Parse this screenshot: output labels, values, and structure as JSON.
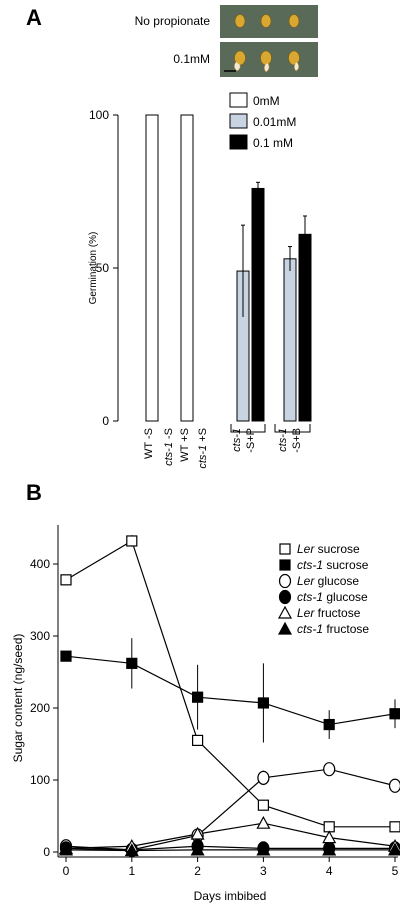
{
  "panel_a": {
    "letter": "A",
    "photo_labels": [
      "No propionate",
      "0.1mM"
    ],
    "ylabel": "Germination (%)",
    "legend": [
      "0mM",
      "0.01mM",
      "0.1 mM"
    ],
    "xtick_lines": [
      [
        "WT -S"
      ],
      [
        "cts-1 -S"
      ],
      [
        "WT +S"
      ],
      [
        "cts-1 +S"
      ],
      [
        "cts-1",
        "-S+P"
      ],
      [
        "cts-1",
        "-S+B"
      ]
    ]
  },
  "panel_b": {
    "letter": "B",
    "xlabel": "Days imbibed",
    "ylabel": "Sugar content (ng/seed)",
    "legend": [
      {
        "genotype": "Ler",
        "sugar": "sucrose"
      },
      {
        "genotype": "cts-1",
        "sugar": "sucrose"
      },
      {
        "genotype": "Ler",
        "sugar": "glucose"
      },
      {
        "genotype": "cts-1",
        "sugar": "glucose"
      },
      {
        "genotype": "Ler",
        "sugar": "fructose"
      },
      {
        "genotype": "cts-1",
        "sugar": "fructose"
      }
    ]
  },
  "colors": {
    "white": "#ffffff",
    "light_blue": "#c8d4e2",
    "black": "#000000",
    "photo_bg": "#596a59",
    "seed": "#d9a830"
  },
  "chart_data": [
    {
      "type": "bar",
      "title": "",
      "ylabel": "Germination (%)",
      "ylim": [
        0,
        100
      ],
      "yticks": [
        0,
        50,
        100
      ],
      "categories": [
        "WT -S",
        "cts-1 -S",
        "WT +S",
        "cts-1 +S",
        "cts-1 -S+P",
        "cts-1 -S+B"
      ],
      "series": [
        {
          "name": "0mM",
          "values": [
            100,
            0,
            100,
            0,
            null,
            null
          ]
        },
        {
          "name": "0.01mM",
          "values": [
            null,
            null,
            null,
            null,
            49,
            53
          ],
          "errors": [
            null,
            null,
            null,
            null,
            15,
            4
          ]
        },
        {
          "name": "0.1 mM",
          "values": [
            null,
            null,
            null,
            null,
            76,
            61
          ],
          "errors": [
            null,
            null,
            null,
            null,
            2,
            6
          ]
        }
      ],
      "legend_position": "top-right",
      "grid": false
    },
    {
      "type": "line",
      "title": "",
      "xlabel": "Days imbibed",
      "ylabel": "Sugar content (ng/seed)",
      "x": [
        0,
        1,
        2,
        3,
        4,
        5
      ],
      "xlim": [
        0,
        5
      ],
      "ylim": [
        0,
        450
      ],
      "yticks": [
        0,
        100,
        200,
        300,
        400
      ],
      "series": [
        {
          "name": "Ler sucrose",
          "marker": "open-square",
          "values": [
            378,
            432,
            155,
            65,
            35,
            35
          ],
          "errors": [
            0,
            8,
            0,
            0,
            0,
            0
          ]
        },
        {
          "name": "cts-1 sucrose",
          "marker": "filled-square",
          "values": [
            272,
            262,
            215,
            207,
            177,
            192
          ],
          "errors": [
            0,
            35,
            45,
            55,
            20,
            20
          ]
        },
        {
          "name": "Ler glucose",
          "marker": "open-circle",
          "values": [
            8,
            3,
            23,
            103,
            115,
            92
          ],
          "errors": [
            0,
            0,
            0,
            10,
            0,
            0
          ]
        },
        {
          "name": "cts-1 glucose",
          "marker": "filled-circle",
          "values": [
            5,
            3,
            8,
            5,
            5,
            5
          ],
          "errors": [
            0,
            0,
            0,
            0,
            0,
            0
          ]
        },
        {
          "name": "Ler fructose",
          "marker": "open-triangle",
          "values": [
            5,
            8,
            25,
            40,
            20,
            8
          ],
          "errors": [
            0,
            0,
            0,
            0,
            0,
            0
          ]
        },
        {
          "name": "cts-1 fructose",
          "marker": "filled-triangle",
          "values": [
            3,
            2,
            3,
            3,
            3,
            3
          ],
          "errors": [
            0,
            0,
            0,
            0,
            0,
            0
          ]
        }
      ],
      "legend_position": "top-right",
      "grid": false
    }
  ]
}
